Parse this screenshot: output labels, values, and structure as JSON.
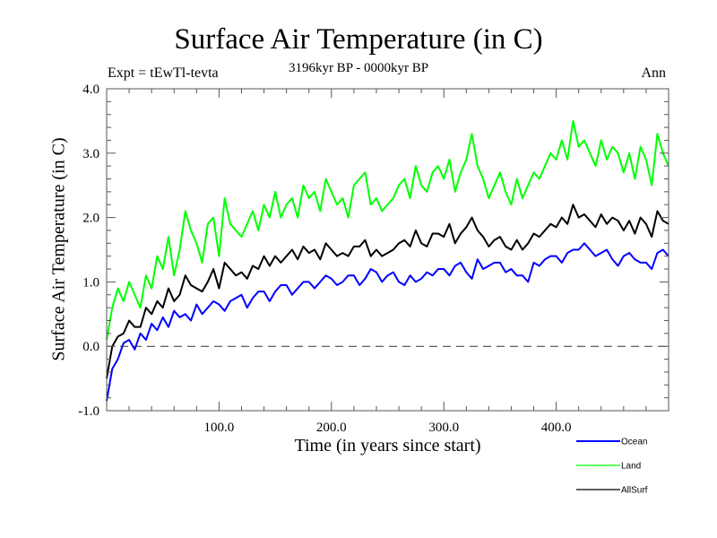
{
  "chart_data": {
    "type": "line",
    "title": "Surface Air Temperature (in C)",
    "subtitle_left": "Expt = tEwTl-tevta",
    "subtitle_center": "3196kyr BP - 0000kyr BP",
    "subtitle_right": "Ann",
    "xlabel": "Time (in years since start)",
    "ylabel": "Surface Air Temperature (in C)",
    "xlim": [
      0,
      500
    ],
    "ylim": [
      -1.0,
      4.0
    ],
    "xticks": [
      100,
      200,
      300,
      400
    ],
    "xtick_labels": [
      "100.0",
      "200.0",
      "300.0",
      "400.0"
    ],
    "xminor_step": 20,
    "yticks": [
      -1,
      0,
      1,
      2,
      3,
      4
    ],
    "ytick_labels": [
      "-1.0",
      "0.0",
      "1.0",
      "2.0",
      "3.0",
      "4.0"
    ],
    "yminor_step": 0.2,
    "reference_line": {
      "y": 0.0,
      "style": "dashed"
    },
    "grid": false,
    "legend_position": "bottom-right, outside plot",
    "x_step": 5,
    "series": [
      {
        "name": "Ocean",
        "color": "#0000ff",
        "values": [
          -0.85,
          -0.35,
          -0.2,
          0.05,
          0.1,
          -0.05,
          0.2,
          0.1,
          0.35,
          0.25,
          0.45,
          0.3,
          0.55,
          0.45,
          0.5,
          0.4,
          0.65,
          0.5,
          0.6,
          0.7,
          0.65,
          0.55,
          0.7,
          0.75,
          0.8,
          0.6,
          0.75,
          0.85,
          0.85,
          0.7,
          0.85,
          0.95,
          0.95,
          0.8,
          0.9,
          1.0,
          1.0,
          0.9,
          1.0,
          1.1,
          1.05,
          0.95,
          1.0,
          1.1,
          1.1,
          0.95,
          1.05,
          1.2,
          1.15,
          1.0,
          1.1,
          1.15,
          1.0,
          0.95,
          1.1,
          1.0,
          1.05,
          1.15,
          1.1,
          1.2,
          1.2,
          1.1,
          1.25,
          1.3,
          1.15,
          1.05,
          1.35,
          1.2,
          1.25,
          1.3,
          1.3,
          1.15,
          1.2,
          1.1,
          1.1,
          1.0,
          1.3,
          1.25,
          1.35,
          1.4,
          1.4,
          1.3,
          1.45,
          1.5,
          1.5,
          1.6,
          1.5,
          1.4,
          1.45,
          1.5,
          1.35,
          1.25,
          1.4,
          1.45,
          1.35,
          1.3,
          1.3,
          1.2,
          1.45,
          1.5,
          1.4
        ]
      },
      {
        "name": "Land",
        "color": "#00ff00",
        "values": [
          0.1,
          0.6,
          0.9,
          0.7,
          1.0,
          0.8,
          0.6,
          1.1,
          0.9,
          1.4,
          1.2,
          1.7,
          1.1,
          1.5,
          2.1,
          1.8,
          1.6,
          1.3,
          1.9,
          2.0,
          1.4,
          2.3,
          1.9,
          1.8,
          1.7,
          1.9,
          2.1,
          1.8,
          2.2,
          2.0,
          2.4,
          2.0,
          2.2,
          2.3,
          2.0,
          2.5,
          2.3,
          2.4,
          2.1,
          2.6,
          2.4,
          2.2,
          2.3,
          2.0,
          2.5,
          2.6,
          2.7,
          2.2,
          2.3,
          2.1,
          2.2,
          2.3,
          2.5,
          2.6,
          2.3,
          2.8,
          2.5,
          2.4,
          2.7,
          2.8,
          2.6,
          2.9,
          2.4,
          2.7,
          2.9,
          3.3,
          2.8,
          2.6,
          2.3,
          2.5,
          2.7,
          2.4,
          2.2,
          2.6,
          2.3,
          2.5,
          2.7,
          2.6,
          2.8,
          3.0,
          2.9,
          3.2,
          2.9,
          3.5,
          3.1,
          3.2,
          3.0,
          2.8,
          3.2,
          2.9,
          3.1,
          3.0,
          2.7,
          3.0,
          2.6,
          3.1,
          2.9,
          2.5,
          3.3,
          3.0,
          2.8
        ]
      },
      {
        "name": "AllSurf",
        "color": "#000000",
        "values": [
          -0.5,
          0.0,
          0.15,
          0.2,
          0.4,
          0.3,
          0.3,
          0.6,
          0.5,
          0.7,
          0.6,
          0.9,
          0.7,
          0.8,
          1.1,
          0.95,
          0.9,
          0.85,
          1.0,
          1.2,
          0.9,
          1.3,
          1.2,
          1.1,
          1.15,
          1.05,
          1.25,
          1.2,
          1.4,
          1.25,
          1.4,
          1.3,
          1.4,
          1.5,
          1.35,
          1.55,
          1.45,
          1.5,
          1.35,
          1.6,
          1.5,
          1.4,
          1.45,
          1.4,
          1.55,
          1.55,
          1.65,
          1.4,
          1.5,
          1.4,
          1.45,
          1.5,
          1.6,
          1.65,
          1.55,
          1.8,
          1.6,
          1.55,
          1.75,
          1.75,
          1.7,
          1.9,
          1.6,
          1.75,
          1.85,
          2.0,
          1.8,
          1.7,
          1.55,
          1.65,
          1.7,
          1.55,
          1.5,
          1.65,
          1.5,
          1.6,
          1.75,
          1.7,
          1.8,
          1.9,
          1.85,
          2.0,
          1.9,
          2.2,
          2.0,
          2.05,
          1.95,
          1.85,
          2.05,
          1.9,
          2.0,
          1.95,
          1.8,
          1.95,
          1.75,
          2.0,
          1.9,
          1.7,
          2.1,
          1.95,
          1.9
        ]
      }
    ]
  }
}
